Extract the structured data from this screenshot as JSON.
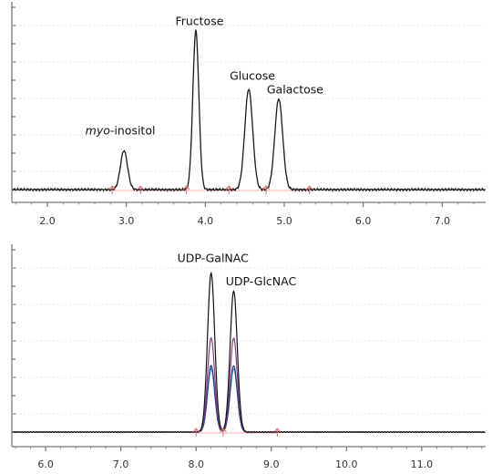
{
  "chart_data": [
    {
      "type": "line",
      "title": "",
      "xlabel": "",
      "ylabel": "",
      "xlim": [
        1.55,
        7.55
      ],
      "ylim": [
        0,
        1.0
      ],
      "grid": false,
      "x_ticks": [
        2.0,
        3.0,
        4.0,
        5.0,
        6.0,
        7.0
      ],
      "x_tick_labels": [
        "2.0",
        "3.0",
        "4.0",
        "5.0",
        "6.0",
        "7.0"
      ],
      "peaks": [
        {
          "name": "myo-inositol",
          "name_italic": "myo",
          "name_rest": "-inositol",
          "x": 2.97,
          "height": 0.24,
          "width": 0.045
        },
        {
          "name": "Fructose",
          "x": 3.88,
          "height": 0.98,
          "width": 0.038
        },
        {
          "name": "Glucose",
          "x": 4.55,
          "height": 0.62,
          "width": 0.05
        },
        {
          "name": "Galactose",
          "x": 4.93,
          "height": 0.56,
          "width": 0.05
        }
      ],
      "baseline": 0.0,
      "integration_markers_x": [
        2.82,
        3.18,
        3.76,
        4.3,
        4.77,
        5.32
      ],
      "series": [
        {
          "color": "#1a1a1a"
        }
      ]
    },
    {
      "type": "line",
      "title": "",
      "xlabel": "",
      "ylabel": "",
      "xlim": [
        5.55,
        11.85
      ],
      "ylim": [
        0,
        1.0
      ],
      "grid": false,
      "x_ticks": [
        6.0,
        7.0,
        8.0,
        9.0,
        10.0,
        11.0
      ],
      "x_tick_labels": [
        "6.0",
        "7.0",
        "8.0",
        "9.0",
        "10.0",
        "11.0"
      ],
      "peaks": [
        {
          "name": "UDP-GalNAC",
          "x": 8.2
        },
        {
          "name": "UDP-GlcNAC",
          "x": 8.5
        }
      ],
      "peak_width": 0.048,
      "integration_markers_x": [
        8.0,
        8.36,
        9.08
      ],
      "series": [
        {
          "color": "#111111",
          "heights": [
            0.98,
            0.87
          ]
        },
        {
          "color": "#8b3a7a",
          "heights": [
            0.58,
            0.58
          ]
        },
        {
          "color": "#1e3a8a",
          "heights": [
            0.41,
            0.41
          ]
        },
        {
          "color": "#4f7fd0",
          "heights": [
            0.39,
            0.39
          ]
        }
      ]
    }
  ]
}
